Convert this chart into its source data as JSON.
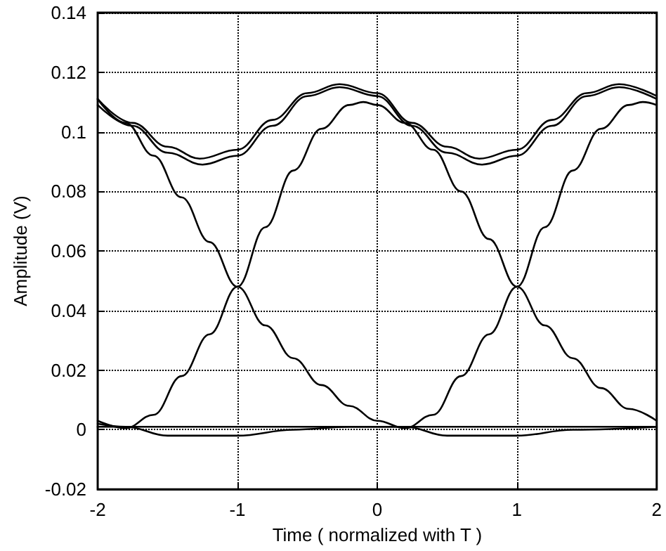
{
  "chart_data": {
    "type": "line",
    "xlabel": "Time ( normalized with T )",
    "ylabel": "Amplitude (V)",
    "xlim": [
      -2,
      2
    ],
    "xticks": [
      -2,
      -1,
      0,
      1,
      2
    ],
    "ylim": [
      -0.02,
      0.14
    ],
    "yticks": [
      -0.02,
      0,
      0.02,
      0.04,
      0.06,
      0.08,
      0.1,
      0.12,
      0.14
    ],
    "grid": true,
    "marker": "none",
    "line_style": "solid",
    "series": [
      {
        "color": "#000000",
        "x": [
          -2,
          -1.75,
          -1.5,
          -1.27,
          -1,
          -0.75,
          -0.5,
          -0.27,
          0,
          0.25,
          0.5,
          0.73,
          1,
          1.25,
          1.5,
          1.73,
          2
        ],
        "values": [
          0.111,
          0.103,
          0.095,
          0.091,
          0.094,
          0.104,
          0.113,
          0.116,
          0.113,
          0.103,
          0.095,
          0.091,
          0.094,
          0.104,
          0.113,
          0.116,
          0.112
        ]
      },
      {
        "color": "#000000",
        "x": [
          -2,
          -1.75,
          -1.5,
          -1.25,
          -1,
          -0.75,
          -0.5,
          -0.27,
          0,
          0.25,
          0.5,
          0.75,
          1,
          1.25,
          1.5,
          1.73,
          2
        ],
        "values": [
          0.109,
          0.102,
          0.093,
          0.089,
          0.092,
          0.102,
          0.112,
          0.115,
          0.112,
          0.102,
          0.093,
          0.089,
          0.092,
          0.102,
          0.112,
          0.115,
          0.111
        ]
      },
      {
        "color": "#000000",
        "x": [
          -2,
          -1.8,
          -1.6,
          -1.4,
          -1.2,
          -1,
          -0.8,
          -0.6,
          -0.4,
          -0.2,
          -0.1,
          0,
          0.2,
          0.4,
          0.6,
          0.8,
          1,
          1.2,
          1.4,
          1.6,
          1.8,
          2
        ],
        "values": [
          0.003,
          0.0005,
          0.005,
          0.018,
          0.032,
          0.048,
          0.068,
          0.087,
          0.101,
          0.109,
          0.11,
          0.109,
          0.103,
          0.094,
          0.08,
          0.064,
          0.048,
          0.035,
          0.024,
          0.014,
          0.007,
          0.003
        ]
      },
      {
        "color": "#000000",
        "x": [
          -2,
          -1.8,
          -1.6,
          -1.4,
          -1.2,
          -1,
          -0.8,
          -0.6,
          -0.4,
          -0.2,
          0,
          0.2,
          0.4,
          0.6,
          0.8,
          1,
          1.2,
          1.4,
          1.6,
          1.8,
          1.9,
          2
        ],
        "values": [
          0.111,
          0.103,
          0.092,
          0.078,
          0.063,
          0.048,
          0.035,
          0.024,
          0.015,
          0.008,
          0.003,
          0.0005,
          0.005,
          0.018,
          0.032,
          0.048,
          0.068,
          0.087,
          0.101,
          0.109,
          0.11,
          0.109
        ]
      },
      {
        "color": "#000000",
        "x": [
          -2,
          -1.8,
          -1.5,
          -1,
          -0.6,
          -0.2,
          0.2,
          0.5,
          1,
          1.4,
          2
        ],
        "values": [
          0.002,
          0.001,
          -0.002,
          -0.002,
          0,
          0.001,
          0.001,
          -0.002,
          -0.002,
          0,
          0.001
        ]
      },
      {
        "color": "#000000",
        "x": [
          -2,
          2
        ],
        "values": [
          0.001,
          0.001
        ]
      }
    ]
  }
}
